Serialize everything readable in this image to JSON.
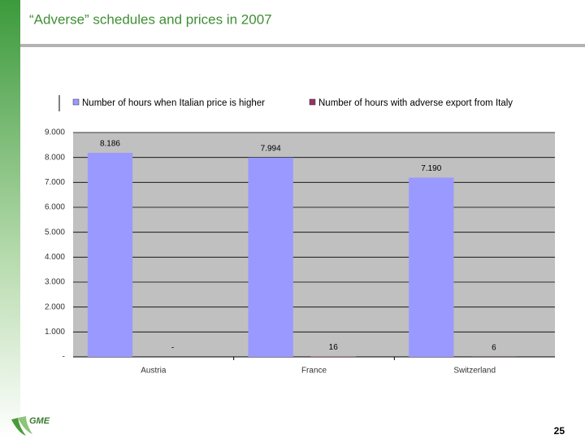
{
  "chart_data": {
    "type": "bar",
    "title": "“Adverse” schedules and prices in 2007",
    "categories": [
      "Austria",
      "France",
      "Switzerland"
    ],
    "series": [
      {
        "name": "Number of hours when Italian price is higher",
        "color": "#9999ff",
        "values": [
          8186,
          7994,
          7190
        ],
        "value_labels": [
          "8.186",
          "7.994",
          "7.190"
        ]
      },
      {
        "name": "Number of hours with adverse export from Italy",
        "color": "#993366",
        "values": [
          0,
          16,
          6
        ],
        "value_labels": [
          "-",
          "16",
          "6"
        ]
      }
    ],
    "ylim": [
      0,
      9000
    ],
    "yticks": [
      {
        "value": 0,
        "label": "-"
      },
      {
        "value": 1000,
        "label": "1.000"
      },
      {
        "value": 2000,
        "label": "2.000"
      },
      {
        "value": 3000,
        "label": "3.000"
      },
      {
        "value": 4000,
        "label": "4.000"
      },
      {
        "value": 5000,
        "label": "5.000"
      },
      {
        "value": 6000,
        "label": "6.000"
      },
      {
        "value": 7000,
        "label": "7.000"
      },
      {
        "value": 8000,
        "label": "8.000"
      },
      {
        "value": 9000,
        "label": "9.000"
      }
    ],
    "grid": true
  },
  "logo": "GME",
  "page_number": "25"
}
